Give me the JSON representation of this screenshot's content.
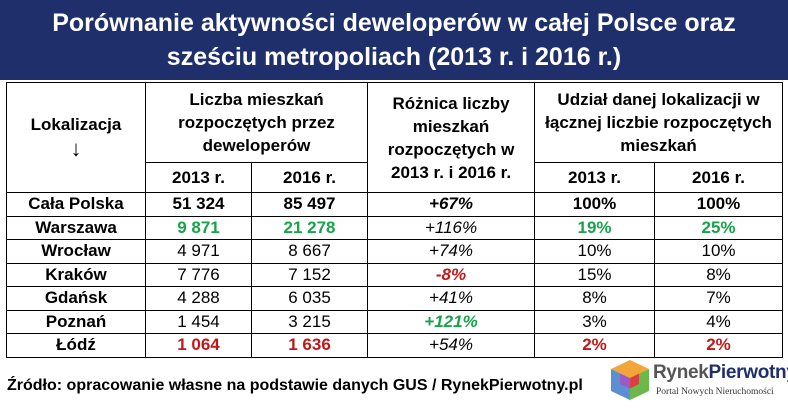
{
  "title": {
    "line1": "Porównanie aktywności deweloperów w całej Polsce oraz",
    "line2": "sześciu metropoliach (2013 r. i 2016 r.)"
  },
  "table": {
    "headers": {
      "location": "Lokalizacja",
      "location_arrow": "↓",
      "started": "Liczba mieszkań rozpoczętych przez deweloperów",
      "difference": "Różnica liczby mieszkań rozpoczętych w 2013 r. i 2016 r.",
      "share": "Udział danej lokalizacji w łącznej liczbie rozpoczętych mieszkań",
      "year1": "2013 r.",
      "year2": "2016 r.",
      "year3": "2013 r.",
      "year4": "2016 r."
    },
    "rows": [
      {
        "location": "Cała Polska",
        "v2013": "51 324",
        "v2016": "85 497",
        "diff": "+67%",
        "s2013": "100%",
        "s2016": "100%"
      },
      {
        "location": "Warszawa",
        "v2013": "9 871",
        "v2016": "21 278",
        "diff": "+116%",
        "s2013": "19%",
        "s2016": "25%"
      },
      {
        "location": "Wrocław",
        "v2013": "4 971",
        "v2016": "8 667",
        "diff": "+74%",
        "s2013": "10%",
        "s2016": "10%"
      },
      {
        "location": "Kraków",
        "v2013": "7 776",
        "v2016": "7 152",
        "diff": "-8%",
        "s2013": "15%",
        "s2016": "8%"
      },
      {
        "location": "Gdańsk",
        "v2013": "4 288",
        "v2016": "6 035",
        "diff": "+41%",
        "s2013": "8%",
        "s2016": "7%"
      },
      {
        "location": "Poznań",
        "v2013": "1 454",
        "v2016": "3 215",
        "diff": "+121%",
        "s2013": "3%",
        "s2016": "4%"
      },
      {
        "location": "Łódź",
        "v2013": "1 064",
        "v2016": "1 636",
        "diff": "+54%",
        "s2013": "2%",
        "s2016": "2%"
      }
    ]
  },
  "footer": {
    "source": "Źródło: opracowanie własne na podstawie danych GUS / RynekPierwotny.pl"
  },
  "logo": {
    "name_part1": "Rynek",
    "name_part2": "Pierwotny",
    "tagline": "Portal Nowych Nieruchomości",
    "icon": "rynekpierwotny-cube-logo"
  },
  "colors": {
    "title_bg": "#1f2f6b",
    "highlight_green": "#17a34a",
    "highlight_red": "#c01818"
  }
}
